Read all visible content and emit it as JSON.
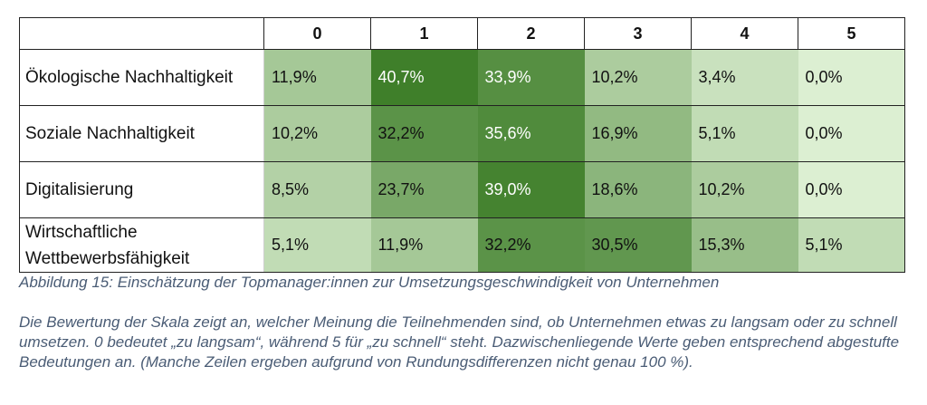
{
  "chart_data": {
    "type": "heatmap",
    "columns": [
      "0",
      "1",
      "2",
      "3",
      "4",
      "5"
    ],
    "rows": [
      {
        "label": "Ökologische Nachhaltigkeit",
        "values": [
          11.9,
          40.7,
          33.9,
          10.2,
          3.4,
          0.0
        ],
        "labels": [
          "11,9%",
          "40,7%",
          "33,9%",
          "10,2%",
          "3,4%",
          "0,0%"
        ]
      },
      {
        "label": "Soziale Nachhaltigkeit",
        "values": [
          10.2,
          32.2,
          35.6,
          16.9,
          5.1,
          0.0
        ],
        "labels": [
          "10,2%",
          "32,2%",
          "35,6%",
          "16,9%",
          "5,1%",
          "0,0%"
        ]
      },
      {
        "label": "Digitalisierung",
        "values": [
          8.5,
          23.7,
          39.0,
          18.6,
          10.2,
          0.0
        ],
        "labels": [
          "8,5%",
          "23,7%",
          "39,0%",
          "18,6%",
          "10,2%",
          "0,0%"
        ]
      },
      {
        "label": "Wirtschaftliche Wettbewerbsfähigkeit",
        "values": [
          5.1,
          11.9,
          32.2,
          30.5,
          15.3,
          5.1
        ],
        "labels": [
          "5,1%",
          "11,9%",
          "32,2%",
          "30,5%",
          "15,3%",
          "5,1%"
        ]
      }
    ],
    "color_scale": {
      "low": "#dcefd2",
      "high": "#3f7f2a",
      "text_dark": "#111111",
      "text_light": "#ffffff"
    }
  },
  "caption": "Abbildung 15: Einschätzung der Topmanager:innen zur Umsetzungsgeschwindigkeit von Unternehmen",
  "description": "Die Bewertung der Skala zeigt an, welcher Meinung die Teilnehmenden sind, ob Unternehmen etwas zu langsam oder zu schnell umsetzen. 0 bedeutet „zu langsam“, während 5 für „zu schnell“ steht. Dazwischenliegende Werte geben entsprechend abgestufte Bedeutungen an. (Manche Zeilen ergeben aufgrund von Rundungsdifferenzen nicht genau 100 %)."
}
